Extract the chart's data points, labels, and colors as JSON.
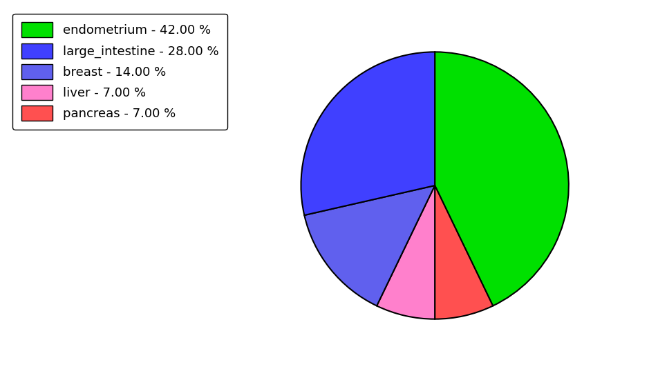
{
  "legend_labels": [
    "endometrium - 42.00 %",
    "large_intestine - 28.00 %",
    "breast - 14.00 %",
    "liver - 7.00 %",
    "pancreas - 7.00 %"
  ],
  "legend_colors": [
    "#00e000",
    "#4040ff",
    "#6060ee",
    "#ff80cc",
    "#ff5050"
  ],
  "wedge_values": [
    42.0,
    7.0,
    7.0,
    14.0,
    28.0
  ],
  "wedge_colors": [
    "#00e000",
    "#ff5050",
    "#ff80cc",
    "#6060ee",
    "#4040ff"
  ],
  "startangle": 90,
  "counterclock": false,
  "background_color": "#ffffff",
  "figsize": [
    9.39,
    5.38
  ],
  "dpi": 100,
  "legend_fontsize": 13,
  "edge_color": "black",
  "edge_linewidth": 1.5
}
